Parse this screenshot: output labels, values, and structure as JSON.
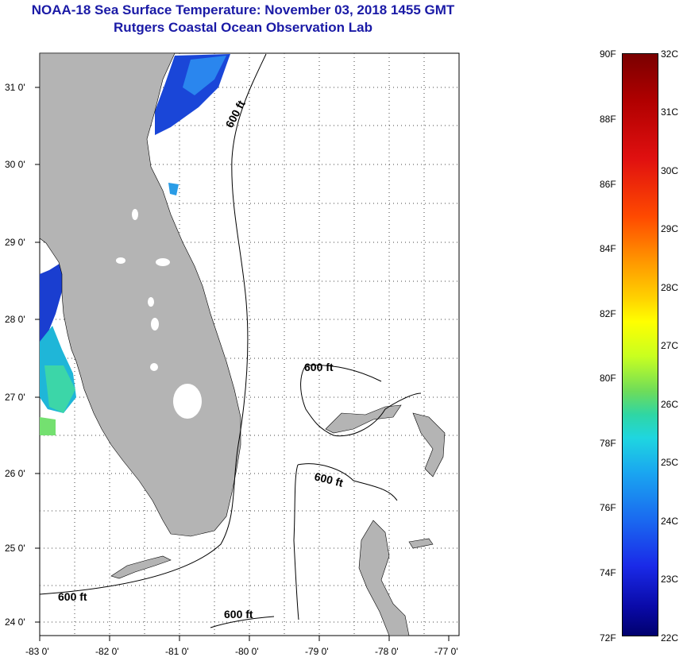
{
  "title": {
    "line1": "NOAA-18 Sea Surface Temperature:  November 03, 2018 1455 GMT",
    "line2": "Rutgers Coastal Ocean Observation Lab"
  },
  "map": {
    "lat_labels": [
      "31 0'",
      "30 0'",
      "29 0'",
      "28 0'",
      "27 0'",
      "26 0'",
      "25 0'",
      "24 0'"
    ],
    "lon_labels": [
      "-83 0'",
      "-82 0'",
      "-81 0'",
      "-80 0'",
      "-79 0'",
      "-78 0'",
      "-77 0'"
    ],
    "contour_label": "600 ft",
    "land_color": "#b4b4b4"
  },
  "colorbar": {
    "fahrenheit": [
      "90F",
      "88F",
      "86F",
      "84F",
      "82F",
      "80F",
      "78F",
      "76F",
      "74F",
      "72F"
    ],
    "celsius": [
      "32C",
      "31C",
      "30C",
      "29C",
      "28C",
      "27C",
      "26C",
      "25C",
      "24C",
      "23C",
      "22C"
    ]
  }
}
